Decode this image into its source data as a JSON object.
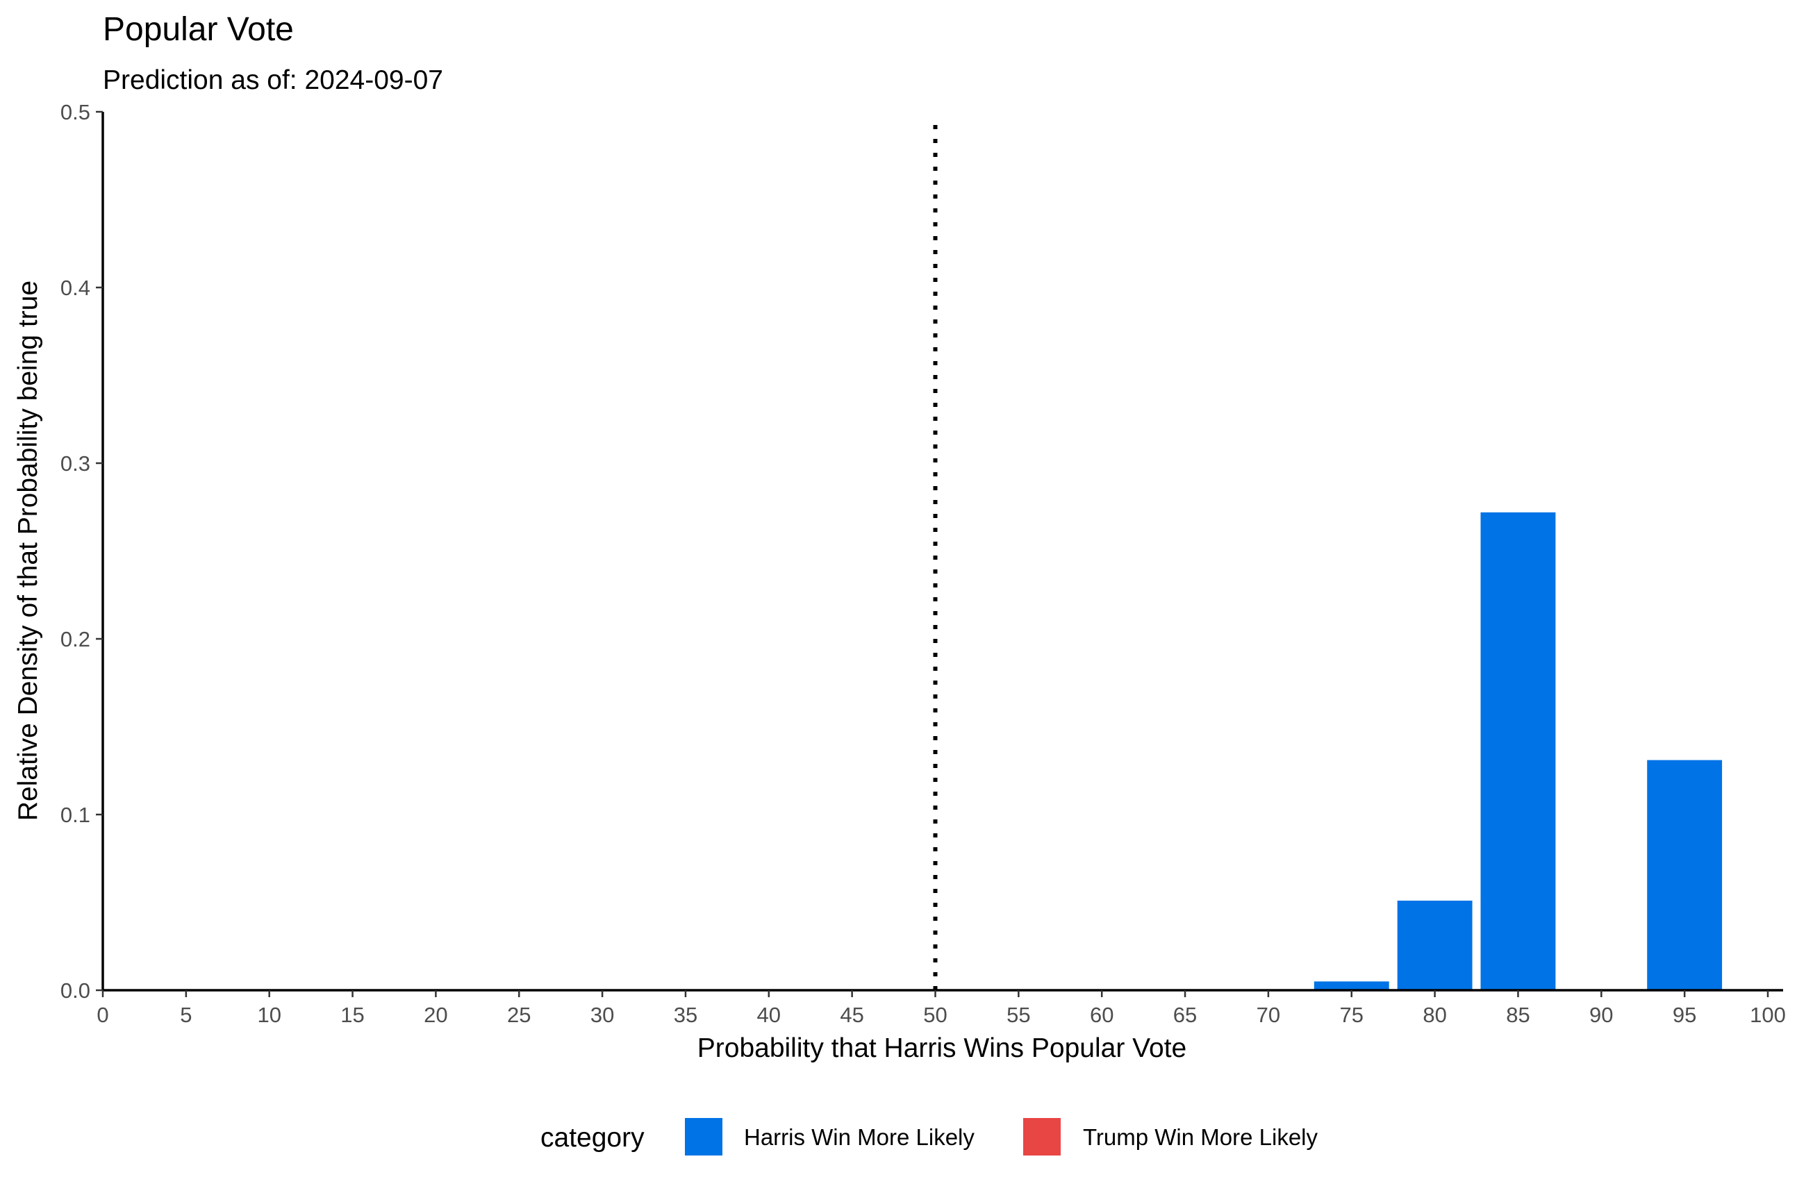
{
  "chart_data": {
    "type": "bar",
    "title": "Popular Vote",
    "subtitle": "Prediction as of: 2024-09-07",
    "xlabel": "Probability that Harris Wins Popular Vote",
    "ylabel": "Relative Density of that Probability being true",
    "xlim": [
      0,
      100
    ],
    "ylim": [
      0,
      0.5
    ],
    "x_ticks": [
      "0",
      "5",
      "10",
      "15",
      "20",
      "25",
      "30",
      "35",
      "40",
      "45",
      "50",
      "55",
      "60",
      "65",
      "70",
      "75",
      "80",
      "85",
      "90",
      "95",
      "100"
    ],
    "y_ticks": [
      "0.0",
      "0.1",
      "0.2",
      "0.3",
      "0.4",
      "0.5"
    ],
    "x_tick_values": [
      0,
      5,
      10,
      15,
      20,
      25,
      30,
      35,
      40,
      45,
      50,
      55,
      60,
      65,
      70,
      75,
      80,
      85,
      90,
      95,
      100
    ],
    "y_tick_values": [
      0,
      0.1,
      0.2,
      0.3,
      0.4,
      0.5
    ],
    "bars": [
      {
        "x": 75,
        "value": 0.005,
        "category": "Harris Win More Likely"
      },
      {
        "x": 80,
        "value": 0.051,
        "category": "Harris Win More Likely"
      },
      {
        "x": 85,
        "value": 0.272,
        "category": "Harris Win More Likely"
      },
      {
        "x": 95,
        "value": 0.131,
        "category": "Harris Win More Likely"
      }
    ],
    "reference_line": {
      "x": 50,
      "style": "dotted"
    },
    "legend": {
      "title": "category",
      "position": "bottom",
      "items": [
        {
          "label": "Harris Win More Likely",
          "color": "#0073E6"
        },
        {
          "label": "Trump Win More Likely",
          "color": "#E84545"
        }
      ]
    },
    "grid": false
  }
}
